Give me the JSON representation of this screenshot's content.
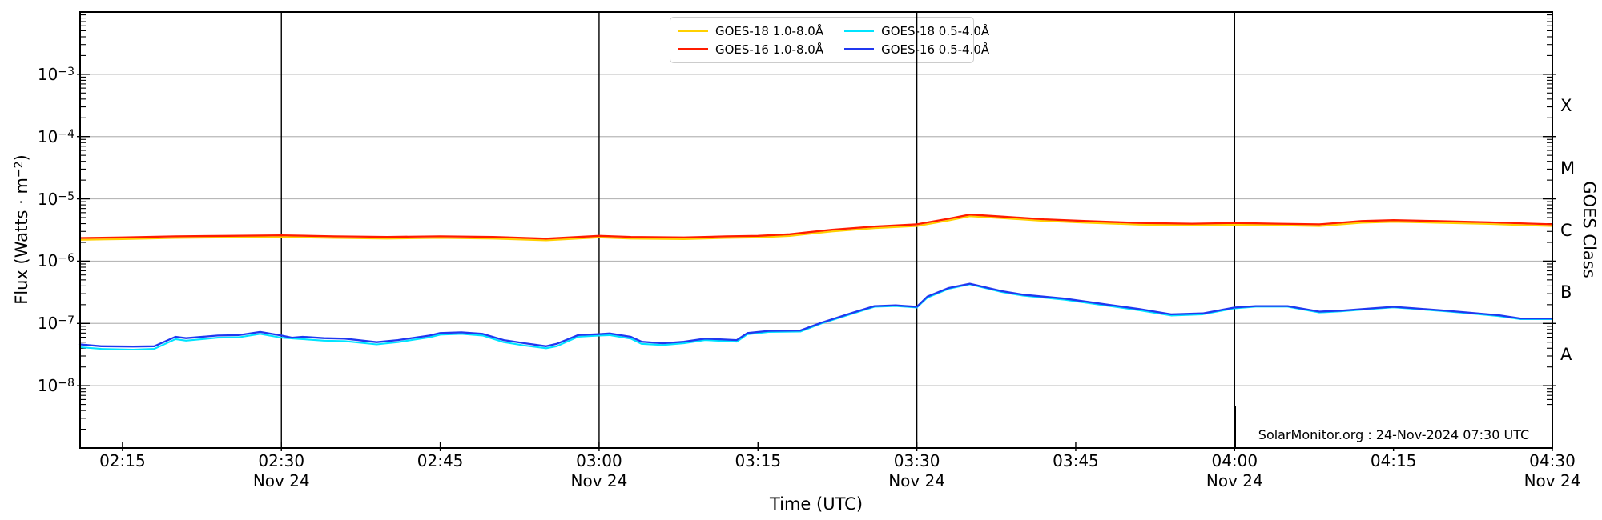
{
  "axis_left": {
    "pre": "Flux (Watts · m",
    "sup": "−2",
    "post": ")"
  },
  "axis_right": {
    "text": "GOES Class"
  },
  "xlabel": {
    "text": "Time (UTC)"
  },
  "watermark": {
    "text": "SolarMonitor.org : 24-Nov-2024 07:30 UTC"
  },
  "legend": {
    "position": "upper center",
    "entries": [
      {
        "id": "goes18-long",
        "label": "GOES-18 1.0-8.0Å",
        "color": "#ffd000"
      },
      {
        "id": "goes16-long",
        "label": "GOES-16 1.0-8.0Å",
        "color": "#ff1c00"
      },
      {
        "id": "goes18-short",
        "label": "GOES-18 0.5-4.0Å",
        "color": "#00e4ff"
      },
      {
        "id": "goes16-short",
        "label": "GOES-16 0.5-4.0Å",
        "color": "#2038f0"
      }
    ]
  },
  "chart_data": {
    "type": "line",
    "title": "",
    "xlabel": "Time (UTC)",
    "ylabel": "Flux (Watts · m⁻²)",
    "ylabel_right": "GOES Class",
    "x_unit": "minutes after 00:00 UTC, 24-Nov-2024",
    "x_range": [
      131,
      270
    ],
    "y_scale": "log",
    "y_log_range": [
      -9,
      -2
    ],
    "grid": {
      "h_decades": [
        -3,
        -4,
        -5,
        -6,
        -7,
        -8
      ],
      "v_lines_min": [
        150,
        180,
        210,
        240
      ],
      "h_color": "#b8b8b8",
      "v_color": "#000000"
    },
    "x_ticks": [
      {
        "m": 135,
        "label": "02:15"
      },
      {
        "m": 150,
        "label": "02:30",
        "date": "Nov 24"
      },
      {
        "m": 165,
        "label": "02:45"
      },
      {
        "m": 180,
        "label": "03:00",
        "date": "Nov 24"
      },
      {
        "m": 195,
        "label": "03:15"
      },
      {
        "m": 210,
        "label": "03:30",
        "date": "Nov 24"
      },
      {
        "m": 225,
        "label": "03:45"
      },
      {
        "m": 240,
        "label": "04:00",
        "date": "Nov 24"
      },
      {
        "m": 255,
        "label": "04:15"
      },
      {
        "m": 270,
        "label": "04:30",
        "date": "Nov 24"
      }
    ],
    "y_ticks": [
      {
        "exp": -3,
        "base": "10",
        "sup": "−3"
      },
      {
        "exp": -4,
        "base": "10",
        "sup": "−4"
      },
      {
        "exp": -5,
        "base": "10",
        "sup": "−5"
      },
      {
        "exp": -6,
        "base": "10",
        "sup": "−6"
      },
      {
        "exp": -7,
        "base": "10",
        "sup": "−7"
      },
      {
        "exp": -8,
        "base": "10",
        "sup": "−8"
      }
    ],
    "goes_classes": [
      {
        "label": "X",
        "center_exp": -3.5
      },
      {
        "label": "M",
        "center_exp": -4.5
      },
      {
        "label": "C",
        "center_exp": -5.5
      },
      {
        "label": "B",
        "center_exp": -6.5
      },
      {
        "label": "A",
        "center_exp": -7.5
      }
    ],
    "series": [
      {
        "id": "goes18-long",
        "name": "GOES-18 1.0-8.0Å",
        "color": "#ffd000",
        "width": 2.1,
        "points": [
          [
            131,
            2.2e-06
          ],
          [
            135,
            2.26e-06
          ],
          [
            140,
            2.35e-06
          ],
          [
            145,
            2.4e-06
          ],
          [
            150,
            2.44e-06
          ],
          [
            155,
            2.35e-06
          ],
          [
            160,
            2.3e-06
          ],
          [
            165,
            2.35e-06
          ],
          [
            170,
            2.3e-06
          ],
          [
            175,
            2.16e-06
          ],
          [
            180,
            2.4e-06
          ],
          [
            183,
            2.3e-06
          ],
          [
            188,
            2.26e-06
          ],
          [
            192,
            2.35e-06
          ],
          [
            195,
            2.4e-06
          ],
          [
            198,
            2.54e-06
          ],
          [
            202,
            3e-06
          ],
          [
            206,
            3.38e-06
          ],
          [
            210,
            3.66e-06
          ],
          [
            213,
            4.5e-06
          ],
          [
            215,
            5.26e-06
          ],
          [
            218,
            4.9e-06
          ],
          [
            222,
            4.42e-06
          ],
          [
            226,
            4.14e-06
          ],
          [
            231,
            3.85e-06
          ],
          [
            236,
            3.76e-06
          ],
          [
            240,
            3.85e-06
          ],
          [
            244,
            3.76e-06
          ],
          [
            248,
            3.66e-06
          ],
          [
            252,
            4.14e-06
          ],
          [
            255,
            4.28e-06
          ],
          [
            259,
            4.14e-06
          ],
          [
            264,
            3.95e-06
          ],
          [
            270,
            3.66e-06
          ]
        ]
      },
      {
        "id": "goes16-long",
        "name": "GOES-16 1.0-8.0Å",
        "color": "#ff1c00",
        "width": 2.3,
        "points": [
          [
            131,
            2.35e-06
          ],
          [
            135,
            2.4e-06
          ],
          [
            140,
            2.5e-06
          ],
          [
            145,
            2.55e-06
          ],
          [
            150,
            2.6e-06
          ],
          [
            155,
            2.5e-06
          ],
          [
            160,
            2.45e-06
          ],
          [
            165,
            2.5e-06
          ],
          [
            170,
            2.45e-06
          ],
          [
            175,
            2.3e-06
          ],
          [
            180,
            2.55e-06
          ],
          [
            183,
            2.45e-06
          ],
          [
            188,
            2.4e-06
          ],
          [
            192,
            2.5e-06
          ],
          [
            195,
            2.55e-06
          ],
          [
            198,
            2.7e-06
          ],
          [
            202,
            3.2e-06
          ],
          [
            206,
            3.6e-06
          ],
          [
            210,
            3.9e-06
          ],
          [
            213,
            4.8e-06
          ],
          [
            215,
            5.6e-06
          ],
          [
            218,
            5.2e-06
          ],
          [
            222,
            4.7e-06
          ],
          [
            226,
            4.4e-06
          ],
          [
            231,
            4.1e-06
          ],
          [
            236,
            4e-06
          ],
          [
            240,
            4.1e-06
          ],
          [
            244,
            4e-06
          ],
          [
            248,
            3.9e-06
          ],
          [
            252,
            4.4e-06
          ],
          [
            255,
            4.55e-06
          ],
          [
            259,
            4.4e-06
          ],
          [
            264,
            4.2e-06
          ],
          [
            270,
            3.9e-06
          ]
        ]
      },
      {
        "id": "goes18-short",
        "name": "GOES-18 0.5-4.0Å",
        "color": "#00e4ff",
        "width": 2.1,
        "points": [
          [
            131,
            4.15e-08
          ],
          [
            133,
            3.9e-08
          ],
          [
            136,
            3.8e-08
          ],
          [
            138,
            3.9e-08
          ],
          [
            140,
            5.6e-08
          ],
          [
            141,
            5.3e-08
          ],
          [
            144,
            5.9e-08
          ],
          [
            146,
            6e-08
          ],
          [
            148,
            6.8e-08
          ],
          [
            150,
            5.9e-08
          ],
          [
            152,
            5.6e-08
          ],
          [
            154,
            5.3e-08
          ],
          [
            156,
            5.2e-08
          ],
          [
            159,
            4.6e-08
          ],
          [
            161,
            5e-08
          ],
          [
            164,
            6e-08
          ],
          [
            165,
            6.6e-08
          ],
          [
            167,
            6.8e-08
          ],
          [
            169,
            6.4e-08
          ],
          [
            171,
            5e-08
          ],
          [
            173,
            4.4e-08
          ],
          [
            175,
            4e-08
          ],
          [
            176,
            4.3e-08
          ],
          [
            178,
            6.1e-08
          ],
          [
            180,
            6.4e-08
          ],
          [
            181,
            6.5e-08
          ],
          [
            183,
            5.7e-08
          ],
          [
            184,
            4.7e-08
          ],
          [
            186,
            4.5e-08
          ],
          [
            188,
            4.8e-08
          ],
          [
            190,
            5.4e-08
          ],
          [
            193,
            5.1e-08
          ],
          [
            194,
            6.7e-08
          ],
          [
            196,
            7.3e-08
          ],
          [
            199,
            7.4e-08
          ],
          [
            201,
            1e-07
          ],
          [
            204,
            1.45e-07
          ],
          [
            206,
            1.85e-07
          ],
          [
            208,
            1.9e-07
          ],
          [
            210,
            1.8e-07
          ],
          [
            211,
            2.6e-07
          ],
          [
            213,
            3.6e-07
          ],
          [
            215,
            4.25e-07
          ],
          [
            218,
            3.2e-07
          ],
          [
            220,
            2.8e-07
          ],
          [
            224,
            2.4e-07
          ],
          [
            228,
            1.92e-07
          ],
          [
            231,
            1.63e-07
          ],
          [
            234,
            1.34e-07
          ],
          [
            237,
            1.4e-07
          ],
          [
            240,
            1.75e-07
          ],
          [
            242,
            1.86e-07
          ],
          [
            245,
            1.86e-07
          ],
          [
            248,
            1.5e-07
          ],
          [
            250,
            1.56e-07
          ],
          [
            253,
            1.71e-07
          ],
          [
            255,
            1.81e-07
          ],
          [
            257,
            1.71e-07
          ],
          [
            260,
            1.56e-07
          ],
          [
            262,
            1.46e-07
          ],
          [
            265,
            1.31e-07
          ],
          [
            267,
            1.17e-07
          ],
          [
            270,
            1.17e-07
          ]
        ]
      },
      {
        "id": "goes16-short",
        "name": "GOES-16 0.5-4.0Å",
        "color": "#2038f0",
        "width": 2.3,
        "points": [
          [
            131,
            4.6e-08
          ],
          [
            133,
            4.3e-08
          ],
          [
            136,
            4.25e-08
          ],
          [
            138,
            4.3e-08
          ],
          [
            140,
            6.1e-08
          ],
          [
            141,
            5.8e-08
          ],
          [
            144,
            6.4e-08
          ],
          [
            146,
            6.5e-08
          ],
          [
            148,
            7.3e-08
          ],
          [
            150,
            6.4e-08
          ],
          [
            151,
            5.9e-08
          ],
          [
            152,
            6.1e-08
          ],
          [
            154,
            5.8e-08
          ],
          [
            156,
            5.7e-08
          ],
          [
            159,
            5e-08
          ],
          [
            161,
            5.4e-08
          ],
          [
            164,
            6.4e-08
          ],
          [
            165,
            7e-08
          ],
          [
            167,
            7.2e-08
          ],
          [
            169,
            6.8e-08
          ],
          [
            171,
            5.4e-08
          ],
          [
            173,
            4.8e-08
          ],
          [
            175,
            4.3e-08
          ],
          [
            176,
            4.7e-08
          ],
          [
            178,
            6.5e-08
          ],
          [
            180,
            6.75e-08
          ],
          [
            181,
            6.9e-08
          ],
          [
            183,
            6.1e-08
          ],
          [
            184,
            5.1e-08
          ],
          [
            186,
            4.8e-08
          ],
          [
            188,
            5.1e-08
          ],
          [
            190,
            5.7e-08
          ],
          [
            193,
            5.4e-08
          ],
          [
            194,
            7e-08
          ],
          [
            196,
            7.6e-08
          ],
          [
            199,
            7.7e-08
          ],
          [
            201,
            1.03e-07
          ],
          [
            204,
            1.5e-07
          ],
          [
            206,
            1.9e-07
          ],
          [
            208,
            1.95e-07
          ],
          [
            210,
            1.85e-07
          ],
          [
            211,
            2.7e-07
          ],
          [
            213,
            3.7e-07
          ],
          [
            215,
            4.35e-07
          ],
          [
            218,
            3.3e-07
          ],
          [
            220,
            2.9e-07
          ],
          [
            224,
            2.5e-07
          ],
          [
            228,
            2e-07
          ],
          [
            231,
            1.7e-07
          ],
          [
            234,
            1.4e-07
          ],
          [
            237,
            1.45e-07
          ],
          [
            240,
            1.8e-07
          ],
          [
            242,
            1.9e-07
          ],
          [
            245,
            1.9e-07
          ],
          [
            248,
            1.55e-07
          ],
          [
            250,
            1.6e-07
          ],
          [
            253,
            1.75e-07
          ],
          [
            255,
            1.85e-07
          ],
          [
            257,
            1.75e-07
          ],
          [
            260,
            1.6e-07
          ],
          [
            262,
            1.5e-07
          ],
          [
            265,
            1.35e-07
          ],
          [
            267,
            1.2e-07
          ],
          [
            270,
            1.2e-07
          ]
        ]
      }
    ]
  }
}
